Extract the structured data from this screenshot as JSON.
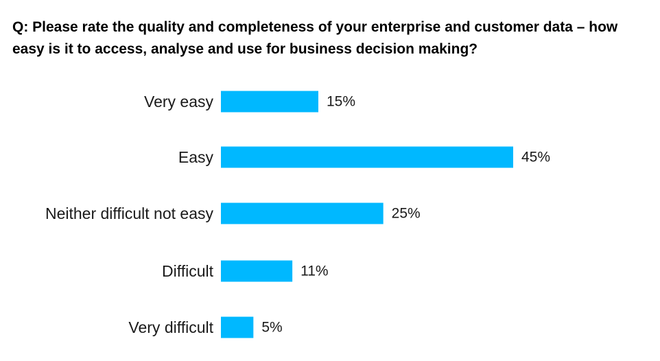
{
  "chart_data": {
    "type": "bar",
    "orientation": "horizontal",
    "title": "Q: Please rate the quality and completeness of your enterprise and customer data – how easy is it to access, analyse and use for business decision making?",
    "categories": [
      "Very easy",
      "Easy",
      "Neither difficult not easy",
      "Difficult",
      "Very difficult"
    ],
    "values": [
      15,
      45,
      25,
      11,
      5
    ],
    "value_labels": [
      "15%",
      "45%",
      "25%",
      "11%",
      "5%"
    ],
    "unit": "%",
    "xlim": [
      0,
      45
    ],
    "grid": false,
    "legend": "none",
    "bar_color": "#00b8ff"
  }
}
